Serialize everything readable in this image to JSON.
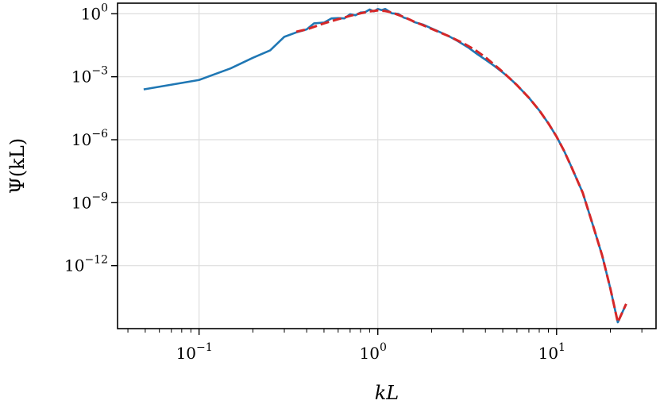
{
  "chart_data": {
    "type": "line",
    "title": "",
    "xlabel": "kL",
    "ylabel": "Ψ(kL)",
    "xscale": "log",
    "yscale": "log",
    "xlim": [
      0.035,
      36
    ],
    "ylim": [
      1e-15,
      3.2
    ],
    "xticks": [
      {
        "value": 0.1,
        "base": "10",
        "exp": "−1"
      },
      {
        "value": 1,
        "base": "10",
        "exp": "0"
      },
      {
        "value": 10,
        "base": "10",
        "exp": "1"
      }
    ],
    "yticks": [
      {
        "value": 1,
        "base": "10",
        "exp": "0"
      },
      {
        "value": 0.001,
        "base": "10",
        "exp": "−3"
      },
      {
        "value": 1e-06,
        "base": "10",
        "exp": "−6"
      },
      {
        "value": 1e-09,
        "base": "10",
        "exp": "−9"
      },
      {
        "value": 1e-12,
        "base": "10",
        "exp": "−12"
      }
    ],
    "grid": true,
    "legend": "none",
    "series": [
      {
        "style": "solid",
        "color": "#1f77b4",
        "x": [
          0.049,
          0.1,
          0.15,
          0.2,
          0.25,
          0.3,
          0.35,
          0.4,
          0.44,
          0.5,
          0.55,
          0.6,
          0.65,
          0.7,
          0.75,
          0.8,
          0.85,
          0.9,
          0.95,
          1.0,
          1.05,
          1.1,
          1.2,
          1.3,
          1.4,
          1.5,
          1.6,
          1.8,
          2.0,
          2.2,
          2.5,
          2.8,
          3.2,
          3.6,
          4.0,
          4.5,
          5.0,
          5.5,
          6.0,
          7.0,
          8.0,
          9.0,
          10.0,
          11.0,
          12.0,
          14.0,
          16.0,
          18.0,
          20.0,
          22.0,
          24.5
        ],
        "y": [
          0.00025,
          0.0007,
          0.0025,
          0.008,
          0.018,
          0.08,
          0.13,
          0.18,
          0.35,
          0.38,
          0.6,
          0.62,
          0.6,
          0.95,
          0.85,
          1.15,
          1.2,
          1.6,
          1.3,
          1.7,
          1.5,
          1.7,
          1.05,
          1.0,
          0.65,
          0.55,
          0.4,
          0.3,
          0.2,
          0.14,
          0.085,
          0.05,
          0.025,
          0.012,
          0.0065,
          0.0032,
          0.0016,
          0.0008,
          0.0004,
          0.0001,
          2.5e-05,
          6e-06,
          1.4e-06,
          3e-07,
          6e-08,
          3e-09,
          8e-11,
          3e-12,
          8e-14,
          2e-15,
          1.5e-14
        ]
      },
      {
        "style": "dashed",
        "color": "#d62728",
        "x": [
          0.35,
          0.4,
          0.5,
          0.6,
          0.7,
          0.8,
          0.9,
          1.0,
          1.1,
          1.2,
          1.4,
          1.6,
          1.8,
          2.0,
          2.5,
          3.0,
          3.5,
          4.0,
          5.0,
          6.0,
          7.0,
          8.0,
          9.0,
          10.0,
          11.0,
          12.0,
          14.0,
          16.0,
          18.0,
          20.0,
          22.0,
          24.5
        ],
        "y": [
          0.14,
          0.18,
          0.35,
          0.55,
          0.8,
          1.05,
          1.3,
          1.45,
          1.35,
          1.15,
          0.7,
          0.42,
          0.28,
          0.19,
          0.085,
          0.04,
          0.019,
          0.0085,
          0.0017,
          0.0004,
          0.0001,
          2.5e-05,
          6e-06,
          1.4e-06,
          3e-07,
          6e-08,
          3e-09,
          8e-11,
          3e-12,
          8e-14,
          2e-15,
          1.5e-14
        ]
      }
    ]
  }
}
